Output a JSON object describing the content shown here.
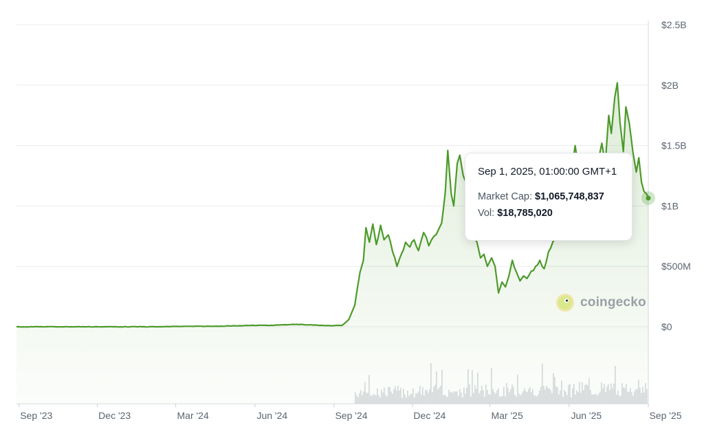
{
  "chart_data": {
    "type": "area",
    "colors": {
      "line": "#4c9a2a",
      "fill": "#4c9a2a",
      "volume": "#d6d9dd",
      "grid": "#eaecef"
    },
    "y_axis": {
      "ticks": [
        "$2.5B",
        "$2B",
        "$1.5B",
        "$1B",
        "$500M",
        "$0"
      ],
      "tick_values": [
        2.5,
        2.0,
        1.5,
        1.0,
        0.5,
        0
      ],
      "range": [
        0,
        2.5
      ],
      "unit": "billions USD",
      "position": "right"
    },
    "x_axis": {
      "ticks": [
        "Sep '23",
        "Dec '23",
        "Mar '24",
        "Jun '24",
        "Sep '24",
        "Dec '24",
        "Mar '25",
        "Jun '25",
        "Sep '25"
      ],
      "tick_dates": [
        "2023-09-01",
        "2023-12-01",
        "2024-03-01",
        "2024-06-01",
        "2024-09-01",
        "2024-12-01",
        "2025-03-01",
        "2025-06-01",
        "2025-09-01"
      ]
    },
    "grid": true,
    "series": [
      {
        "values_billion_usd": [
          [
            "2023-08-29",
            0.0
          ],
          [
            "2023-12-01",
            0.0
          ],
          [
            "2024-02-15",
            0.0
          ],
          [
            "2024-03-01",
            0.003
          ],
          [
            "2024-04-15",
            0.004
          ],
          [
            "2024-05-20",
            0.01
          ],
          [
            "2024-06-20",
            0.012
          ],
          [
            "2024-07-20",
            0.02
          ],
          [
            "2024-08-20",
            0.01
          ],
          [
            "2024-09-10",
            0.01
          ],
          [
            "2024-09-18",
            0.06
          ],
          [
            "2024-09-25",
            0.18
          ],
          [
            "2024-10-01",
            0.45
          ],
          [
            "2024-10-05",
            0.55
          ],
          [
            "2024-10-08",
            0.82
          ],
          [
            "2024-10-12",
            0.7
          ],
          [
            "2024-10-16",
            0.85
          ],
          [
            "2024-10-20",
            0.68
          ],
          [
            "2024-10-25",
            0.84
          ],
          [
            "2024-10-29",
            0.72
          ],
          [
            "2024-11-03",
            0.76
          ],
          [
            "2024-11-08",
            0.62
          ],
          [
            "2024-11-13",
            0.5
          ],
          [
            "2024-11-18",
            0.6
          ],
          [
            "2024-11-23",
            0.7
          ],
          [
            "2024-11-28",
            0.66
          ],
          [
            "2024-12-03",
            0.72
          ],
          [
            "2024-12-08",
            0.63
          ],
          [
            "2024-12-14",
            0.78
          ],
          [
            "2024-12-20",
            0.67
          ],
          [
            "2024-12-26",
            0.75
          ],
          [
            "2024-12-31",
            0.8
          ],
          [
            "2025-01-04",
            0.86
          ],
          [
            "2025-01-08",
            1.1
          ],
          [
            "2025-01-11",
            1.46
          ],
          [
            "2025-01-15",
            1.1
          ],
          [
            "2025-01-18",
            1.0
          ],
          [
            "2025-01-22",
            1.35
          ],
          [
            "2025-01-25",
            1.42
          ],
          [
            "2025-01-29",
            1.25
          ],
          [
            "2025-02-02",
            1.18
          ],
          [
            "2025-02-06",
            1.05
          ],
          [
            "2025-02-10",
            0.75
          ],
          [
            "2025-02-14",
            0.7
          ],
          [
            "2025-02-18",
            0.57
          ],
          [
            "2025-02-22",
            0.6
          ],
          [
            "2025-02-26",
            0.5
          ],
          [
            "2025-03-03",
            0.57
          ],
          [
            "2025-03-07",
            0.5
          ],
          [
            "2025-03-11",
            0.28
          ],
          [
            "2025-03-15",
            0.37
          ],
          [
            "2025-03-19",
            0.33
          ],
          [
            "2025-03-23",
            0.42
          ],
          [
            "2025-03-27",
            0.55
          ],
          [
            "2025-04-01",
            0.45
          ],
          [
            "2025-04-05",
            0.38
          ],
          [
            "2025-04-09",
            0.42
          ],
          [
            "2025-04-13",
            0.4
          ],
          [
            "2025-04-18",
            0.46
          ],
          [
            "2025-04-23",
            0.5
          ],
          [
            "2025-04-28",
            0.55
          ],
          [
            "2025-05-03",
            0.48
          ],
          [
            "2025-05-08",
            0.62
          ],
          [
            "2025-05-13",
            0.7
          ],
          [
            "2025-05-18",
            0.75
          ],
          [
            "2025-05-23",
            0.88
          ],
          [
            "2025-05-28",
            0.95
          ],
          [
            "2025-06-02",
            1.0
          ],
          [
            "2025-06-05",
            1.35
          ],
          [
            "2025-06-08",
            1.5
          ],
          [
            "2025-06-12",
            1.3
          ],
          [
            "2025-06-16",
            1.22
          ],
          [
            "2025-06-20",
            1.18
          ],
          [
            "2025-06-25",
            1.3
          ],
          [
            "2025-06-30",
            1.24
          ],
          [
            "2025-07-05",
            1.38
          ],
          [
            "2025-07-09",
            1.52
          ],
          [
            "2025-07-13",
            1.35
          ],
          [
            "2025-07-17",
            1.75
          ],
          [
            "2025-07-20",
            1.6
          ],
          [
            "2025-07-24",
            1.9
          ],
          [
            "2025-07-27",
            2.02
          ],
          [
            "2025-07-30",
            1.7
          ],
          [
            "2025-08-03",
            1.45
          ],
          [
            "2025-08-06",
            1.82
          ],
          [
            "2025-08-10",
            1.68
          ],
          [
            "2025-08-14",
            1.45
          ],
          [
            "2025-08-18",
            1.28
          ],
          [
            "2025-08-21",
            1.4
          ],
          [
            "2025-08-24",
            1.2
          ],
          [
            "2025-08-27",
            1.12
          ],
          [
            "2025-08-30",
            1.1
          ],
          [
            "2025-09-01",
            1.065
          ]
        ]
      }
    ],
    "volume_series_note_hidden": "",
    "tooltip": {
      "date": "Sep 1, 2025, 01:00:00 GMT+1",
      "market_cap_label": "Market Cap:",
      "market_cap_value": "$1,065,748,837",
      "vol_label": "Vol:",
      "vol_value": "$18,785,020"
    },
    "watermark": "coingecko"
  }
}
